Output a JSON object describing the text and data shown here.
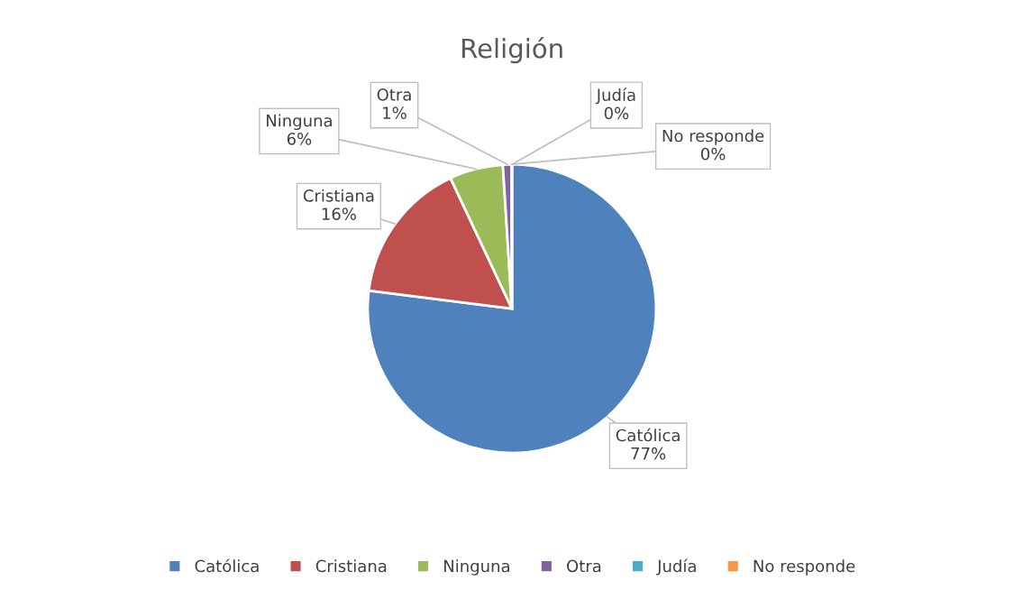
{
  "chart_data": {
    "type": "pie",
    "title": "Religión",
    "categories": [
      "Católica",
      "Cristiana",
      "Ninguna",
      "Otra",
      "Judía",
      "No responde"
    ],
    "values": [
      77,
      16,
      6,
      1,
      0,
      0
    ],
    "colors": [
      "#4f81bd",
      "#c0504d",
      "#9bbb59",
      "#8064a2",
      "#4bacc6",
      "#f79646"
    ],
    "value_labels": [
      "77%",
      "16%",
      "6%",
      "1%",
      "0%",
      "0%"
    ],
    "legend": "bottom"
  }
}
